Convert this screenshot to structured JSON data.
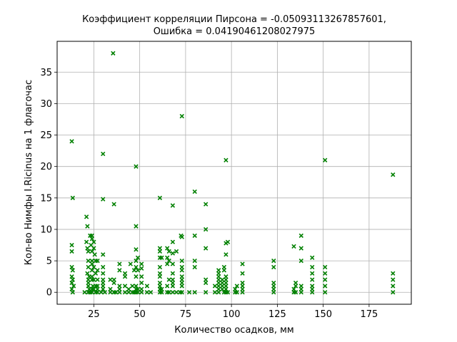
{
  "chart_data": {
    "type": "scatter",
    "title_line1": "Коэффициент корреляции Пирсона = -0.05093113267857601,",
    "title_line2": "Ошибка = 0.04190461208027975",
    "xlabel": "Количество осадков, мм",
    "ylabel": "Кол-во Нимфы I.Ricinus на 1 флагочас",
    "xlim": [
      5,
      198
    ],
    "ylim": [
      -1.9,
      39.9
    ],
    "xticks": [
      25,
      50,
      75,
      100,
      125,
      150,
      175
    ],
    "yticks": [
      0,
      5,
      10,
      15,
      20,
      25,
      30,
      35
    ],
    "grid": true,
    "marker": "x",
    "color": "#008000",
    "points": [
      [
        13,
        24
      ],
      [
        13.5,
        15
      ],
      [
        13,
        7.5
      ],
      [
        13,
        6.5
      ],
      [
        13,
        4
      ],
      [
        13.5,
        3.5
      ],
      [
        13,
        2.5
      ],
      [
        13.5,
        2
      ],
      [
        13,
        1.5
      ],
      [
        14,
        1
      ],
      [
        13,
        0.5
      ],
      [
        13.5,
        0
      ],
      [
        20,
        0
      ],
      [
        21,
        12
      ],
      [
        21.5,
        10.5
      ],
      [
        21,
        8
      ],
      [
        21.5,
        7
      ],
      [
        22,
        6.5
      ],
      [
        22,
        5
      ],
      [
        22,
        4
      ],
      [
        21.5,
        3
      ],
      [
        22.5,
        2.5
      ],
      [
        22,
        2
      ],
      [
        22,
        1.5
      ],
      [
        22,
        1
      ],
      [
        22.5,
        0.5
      ],
      [
        22,
        0
      ],
      [
        23,
        0
      ],
      [
        23,
        9
      ],
      [
        24,
        9
      ],
      [
        24,
        8.5
      ],
      [
        23.5,
        7.5
      ],
      [
        24,
        6.5
      ],
      [
        24,
        5
      ],
      [
        24,
        4.5
      ],
      [
        24,
        3.5
      ],
      [
        24,
        2.5
      ],
      [
        24,
        2
      ],
      [
        24.5,
        1
      ],
      [
        24,
        0.5
      ],
      [
        24,
        0
      ],
      [
        25,
        8
      ],
      [
        25,
        7
      ],
      [
        25.5,
        6
      ],
      [
        26,
        5
      ],
      [
        25,
        4
      ],
      [
        26,
        3
      ],
      [
        25,
        2
      ],
      [
        26,
        1
      ],
      [
        25,
        0.5
      ],
      [
        26,
        0
      ],
      [
        27,
        5
      ],
      [
        27,
        3.5
      ],
      [
        27,
        2
      ],
      [
        27,
        1
      ],
      [
        27,
        0.5
      ],
      [
        27,
        0
      ],
      [
        29,
        0
      ],
      [
        30,
        22
      ],
      [
        30,
        14.8
      ],
      [
        30,
        6
      ],
      [
        30,
        4
      ],
      [
        30,
        3
      ],
      [
        30,
        2
      ],
      [
        30,
        1.5
      ],
      [
        30,
        1
      ],
      [
        30,
        0.5
      ],
      [
        31,
        0
      ],
      [
        34,
        2
      ],
      [
        34,
        0.5
      ],
      [
        34,
        0
      ],
      [
        35.5,
        38
      ],
      [
        36,
        14
      ],
      [
        36,
        2
      ],
      [
        36,
        1.5
      ],
      [
        36,
        0
      ],
      [
        37,
        0
      ],
      [
        39,
        4.5
      ],
      [
        39,
        3.5
      ],
      [
        39,
        1
      ],
      [
        39,
        0.5
      ],
      [
        39,
        0
      ],
      [
        42,
        3
      ],
      [
        42,
        2.5
      ],
      [
        42,
        1
      ],
      [
        42,
        0
      ],
      [
        44,
        0.5
      ],
      [
        44,
        0
      ],
      [
        45,
        4.5
      ],
      [
        46,
        1
      ],
      [
        46,
        0
      ],
      [
        47,
        3.5
      ],
      [
        47,
        0
      ],
      [
        48,
        20
      ],
      [
        48,
        10.5
      ],
      [
        48,
        6.8
      ],
      [
        48,
        5
      ],
      [
        48,
        4
      ],
      [
        48,
        2.5
      ],
      [
        48,
        1
      ],
      [
        48,
        0.5
      ],
      [
        48,
        0
      ],
      [
        49,
        5.5
      ],
      [
        49,
        3.5
      ],
      [
        49,
        0.5
      ],
      [
        49,
        0
      ],
      [
        51,
        4.5
      ],
      [
        51,
        3.8
      ],
      [
        51,
        2.5
      ],
      [
        51,
        1.5
      ],
      [
        51,
        0.5
      ],
      [
        51,
        0
      ],
      [
        54,
        1
      ],
      [
        54,
        0
      ],
      [
        56,
        0
      ],
      [
        61,
        15
      ],
      [
        61,
        7
      ],
      [
        61,
        6.5
      ],
      [
        61,
        5.5
      ],
      [
        61,
        4
      ],
      [
        61,
        3
      ],
      [
        61,
        2.5
      ],
      [
        61,
        1.5
      ],
      [
        61,
        1
      ],
      [
        61,
        0.5
      ],
      [
        61,
        0
      ],
      [
        62,
        5.5
      ],
      [
        62,
        0.5
      ],
      [
        62,
        0
      ],
      [
        65,
        7
      ],
      [
        65,
        5.5
      ],
      [
        65,
        4.5
      ],
      [
        65,
        1
      ],
      [
        65,
        0
      ],
      [
        66,
        6.5
      ],
      [
        66,
        5
      ],
      [
        66,
        2
      ],
      [
        66,
        0
      ],
      [
        68,
        13.8
      ],
      [
        68,
        8
      ],
      [
        68,
        6.2
      ],
      [
        68,
        4.5
      ],
      [
        68,
        3
      ],
      [
        68,
        2
      ],
      [
        68,
        1.5
      ],
      [
        68,
        1
      ],
      [
        68,
        0
      ],
      [
        70,
        6.5
      ],
      [
        70,
        0
      ],
      [
        72,
        0
      ],
      [
        72.5,
        9
      ],
      [
        73,
        28
      ],
      [
        73,
        8.8
      ],
      [
        73,
        5
      ],
      [
        73,
        4
      ],
      [
        73,
        3.5
      ],
      [
        73,
        2.5
      ],
      [
        73,
        2
      ],
      [
        73,
        1.5
      ],
      [
        73,
        1
      ],
      [
        73,
        0
      ],
      [
        77,
        0
      ],
      [
        80,
        16
      ],
      [
        80,
        9
      ],
      [
        80,
        5
      ],
      [
        80,
        4
      ],
      [
        80,
        0
      ],
      [
        86,
        14
      ],
      [
        86,
        10
      ],
      [
        86,
        7
      ],
      [
        86,
        2
      ],
      [
        86,
        1.5
      ],
      [
        86,
        0
      ],
      [
        91,
        1
      ],
      [
        91,
        0
      ],
      [
        93,
        3.5
      ],
      [
        93,
        3
      ],
      [
        93,
        2.5
      ],
      [
        93,
        2
      ],
      [
        93,
        1.5
      ],
      [
        93,
        1
      ],
      [
        93,
        0.5
      ],
      [
        93,
        0
      ],
      [
        95,
        2
      ],
      [
        95,
        1.5
      ],
      [
        95,
        1
      ],
      [
        95,
        0.5
      ],
      [
        96,
        4
      ],
      [
        96,
        3.5
      ],
      [
        96,
        0
      ],
      [
        97,
        21
      ],
      [
        97,
        7.8
      ],
      [
        97,
        6
      ],
      [
        97,
        2.5
      ],
      [
        97,
        2
      ],
      [
        97,
        1.5
      ],
      [
        97,
        1
      ],
      [
        97,
        0.5
      ],
      [
        97,
        0
      ],
      [
        98,
        8
      ],
      [
        98,
        0
      ],
      [
        102,
        0.5
      ],
      [
        102,
        0
      ],
      [
        103,
        1
      ],
      [
        103,
        0
      ],
      [
        106,
        4.5
      ],
      [
        106,
        3
      ],
      [
        106,
        1.5
      ],
      [
        106,
        1
      ],
      [
        106,
        0.5
      ],
      [
        106,
        0
      ],
      [
        123,
        5
      ],
      [
        123,
        4
      ],
      [
        123,
        1.5
      ],
      [
        123,
        1
      ],
      [
        123,
        0.5
      ],
      [
        123,
        0
      ],
      [
        134,
        7.3
      ],
      [
        134,
        0.5
      ],
      [
        134,
        0
      ],
      [
        135,
        1.5
      ],
      [
        135,
        1
      ],
      [
        135,
        0
      ],
      [
        138,
        9
      ],
      [
        138,
        7
      ],
      [
        138,
        5
      ],
      [
        138,
        1
      ],
      [
        138,
        0.5
      ],
      [
        138,
        0
      ],
      [
        144,
        5.5
      ],
      [
        144,
        4
      ],
      [
        144,
        3
      ],
      [
        144,
        2
      ],
      [
        144,
        1
      ],
      [
        144,
        0.5
      ],
      [
        144,
        0
      ],
      [
        151,
        21
      ],
      [
        151,
        4
      ],
      [
        151,
        3
      ],
      [
        151,
        2
      ],
      [
        151,
        1
      ],
      [
        151,
        0
      ],
      [
        188,
        18.7
      ],
      [
        188,
        3
      ],
      [
        188,
        2
      ],
      [
        188,
        1
      ],
      [
        188,
        0
      ]
    ]
  }
}
